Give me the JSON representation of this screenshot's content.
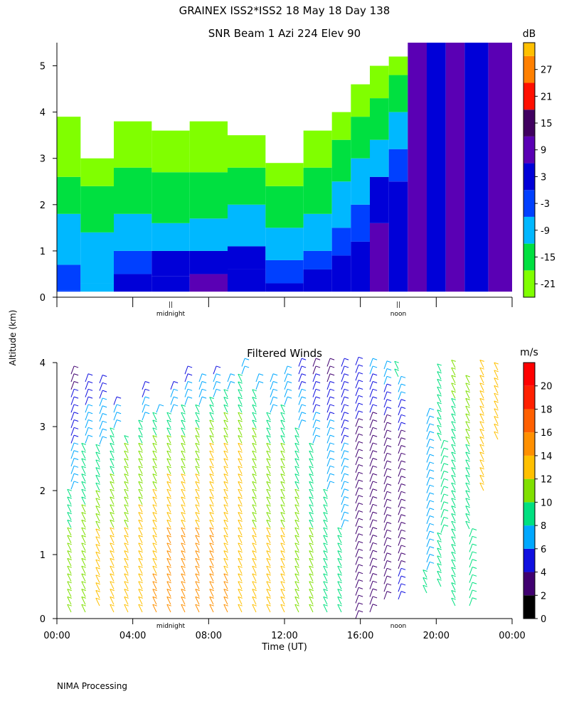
{
  "header": {
    "title": "GRAINEX ISS2*ISS2  18 May 18 Day 138",
    "ylabel": "Altitude (km)",
    "footer": "NIMA Processing"
  },
  "chart_data": [
    {
      "type": "heatmap",
      "title": "SNR Beam 1 Azi 224 Elev 90",
      "xlabel": "",
      "ylabel": "Altitude (km)",
      "ylim": [
        0,
        5.5
      ],
      "xlim": [
        0,
        24
      ],
      "yticks": [
        0,
        1,
        2,
        3,
        4,
        5
      ],
      "x_markers": [
        {
          "hour": 6,
          "label": "midnight"
        },
        {
          "hour": 18,
          "label": "noon"
        }
      ],
      "colorbar": {
        "unit": "dB",
        "ticks": [
          -21,
          -15,
          -9,
          -3,
          3,
          9,
          15,
          21,
          27
        ],
        "bins": [
          {
            "low": -24,
            "high": -18,
            "color": "#80ff00"
          },
          {
            "low": -18,
            "high": -12,
            "color": "#00e040"
          },
          {
            "low": -12,
            "high": -6,
            "color": "#00b8ff"
          },
          {
            "low": -6,
            "high": 0,
            "color": "#0040ff"
          },
          {
            "low": 0,
            "high": 6,
            "color": "#0000d8"
          },
          {
            "low": 6,
            "high": 12,
            "color": "#5a00b4"
          },
          {
            "low": 12,
            "high": 18,
            "color": "#400060"
          },
          {
            "low": 18,
            "high": 24,
            "color": "#ff1000"
          },
          {
            "low": 24,
            "high": 30,
            "color": "#ff8000"
          },
          {
            "low": 30,
            "high": 33,
            "color": "#ffc000"
          }
        ]
      },
      "profile_x_hours": [
        0.5,
        2,
        4,
        6,
        8,
        10,
        12,
        14,
        15,
        16,
        17,
        18,
        19,
        20,
        21,
        22,
        23.5
      ],
      "profile_bands": [
        [
          {
            "top": 0.15,
            "level": -6
          },
          {
            "top": 0.7,
            "level": -6
          },
          {
            "top": 1.8,
            "level": -12
          },
          {
            "top": 2.6,
            "level": -18
          },
          {
            "top": 3.9,
            "level": -21
          }
        ],
        [
          {
            "top": 0.3,
            "level": -12
          },
          {
            "top": 1.4,
            "level": -12
          },
          {
            "top": 2.4,
            "level": -18
          },
          {
            "top": 3.0,
            "level": -21
          }
        ],
        [
          {
            "top": 0.5,
            "level": 3
          },
          {
            "top": 1.0,
            "level": -6
          },
          {
            "top": 1.8,
            "level": -12
          },
          {
            "top": 2.8,
            "level": -18
          },
          {
            "top": 3.8,
            "level": -21
          }
        ],
        [
          {
            "top": 0.45,
            "level": 3
          },
          {
            "top": 1.0,
            "level": 0
          },
          {
            "top": 1.6,
            "level": -12
          },
          {
            "top": 2.7,
            "level": -18
          },
          {
            "top": 3.6,
            "level": -21
          }
        ],
        [
          {
            "top": 0.5,
            "level": 9
          },
          {
            "top": 1.0,
            "level": 0
          },
          {
            "top": 1.7,
            "level": -12
          },
          {
            "top": 2.7,
            "level": -18
          },
          {
            "top": 3.8,
            "level": -21
          }
        ],
        [
          {
            "top": 0.6,
            "level": 3
          },
          {
            "top": 1.1,
            "level": 0
          },
          {
            "top": 2.0,
            "level": -12
          },
          {
            "top": 2.8,
            "level": -18
          },
          {
            "top": 3.5,
            "level": -21
          }
        ],
        [
          {
            "top": 0.3,
            "level": 3
          },
          {
            "top": 0.8,
            "level": -6
          },
          {
            "top": 1.5,
            "level": -12
          },
          {
            "top": 2.4,
            "level": -18
          },
          {
            "top": 2.9,
            "level": -21
          }
        ],
        [
          {
            "top": 0.6,
            "level": 3
          },
          {
            "top": 1.0,
            "level": -6
          },
          {
            "top": 1.8,
            "level": -12
          },
          {
            "top": 2.8,
            "level": -18
          },
          {
            "top": 3.6,
            "level": -21
          }
        ],
        [
          {
            "top": 0.9,
            "level": 3
          },
          {
            "top": 1.5,
            "level": -6
          },
          {
            "top": 2.5,
            "level": -12
          },
          {
            "top": 3.4,
            "level": -18
          },
          {
            "top": 4.0,
            "level": -21
          }
        ],
        [
          {
            "top": 1.2,
            "level": 3
          },
          {
            "top": 2.0,
            "level": -6
          },
          {
            "top": 3.0,
            "level": -12
          },
          {
            "top": 3.9,
            "level": -18
          },
          {
            "top": 4.6,
            "level": -21
          }
        ],
        [
          {
            "top": 1.6,
            "level": 9
          },
          {
            "top": 2.6,
            "level": 0
          },
          {
            "top": 3.4,
            "level": -12
          },
          {
            "top": 4.3,
            "level": -18
          },
          {
            "top": 5.0,
            "level": -21
          }
        ],
        [
          {
            "top": 2.5,
            "level": 3
          },
          {
            "top": 3.2,
            "level": -6
          },
          {
            "top": 4.0,
            "level": -12
          },
          {
            "top": 4.8,
            "level": -18
          },
          {
            "top": 5.2,
            "level": -21
          }
        ],
        [
          {
            "top": 5.5,
            "level": 9
          }
        ],
        [
          {
            "top": 5.5,
            "level": 3
          }
        ],
        [
          {
            "top": 5.5,
            "level": 9
          }
        ],
        [
          {
            "top": 5.5,
            "level": 3
          }
        ],
        [
          {
            "top": 5.5,
            "level": 9
          }
        ]
      ]
    },
    {
      "type": "scatter",
      "title": "Filtered Winds",
      "xlabel": "Time (UT)",
      "ylabel": "Altitude (km)",
      "xlim": [
        0,
        24
      ],
      "ylim": [
        0,
        4
      ],
      "xticks": [
        "00:00",
        "04:00",
        "08:00",
        "12:00",
        "16:00",
        "20:00",
        "00:00"
      ],
      "yticks": [
        0,
        1,
        2,
        3,
        4
      ],
      "x_markers": [
        {
          "hour": 6,
          "label": "midnight"
        },
        {
          "hour": 18,
          "label": "noon"
        }
      ],
      "colorbar": {
        "unit": "m/s",
        "ticks": [
          0,
          2,
          4,
          6,
          8,
          10,
          12,
          14,
          16,
          18,
          20
        ],
        "bins": [
          {
            "low": 0,
            "high": 2,
            "color": "#000000"
          },
          {
            "low": 2,
            "high": 4,
            "color": "#400070"
          },
          {
            "low": 4,
            "high": 6,
            "color": "#1010e0"
          },
          {
            "low": 6,
            "high": 8,
            "color": "#00a8ff"
          },
          {
            "low": 8,
            "high": 10,
            "color": "#00e080"
          },
          {
            "low": 10,
            "high": 12,
            "color": "#80e000"
          },
          {
            "low": 12,
            "high": 14,
            "color": "#ffc000"
          },
          {
            "low": 14,
            "high": 16,
            "color": "#ff9000"
          },
          {
            "low": 16,
            "high": 18,
            "color": "#ff6000"
          },
          {
            "low": 18,
            "high": 20,
            "color": "#ff2000"
          },
          {
            "low": 20,
            "high": 22,
            "color": "#ff0000"
          }
        ]
      },
      "wind_columns": [
        {
          "hour": 0.75,
          "bottom": 0.1,
          "top": 3.9,
          "speed": [
            12,
            10,
            6,
            3
          ]
        },
        {
          "hour": 1.5,
          "bottom": 0.1,
          "top": 3.8,
          "speed": [
            12,
            11,
            8,
            4
          ]
        },
        {
          "hour": 2.25,
          "bottom": 0.2,
          "top": 3.7,
          "speed": [
            12,
            12,
            8,
            4
          ]
        },
        {
          "hour": 3.0,
          "bottom": 0.1,
          "top": 3.4,
          "speed": [
            13,
            12,
            9,
            3
          ]
        },
        {
          "hour": 3.75,
          "bottom": 0.1,
          "top": 2.8,
          "speed": [
            14,
            12,
            10,
            4
          ]
        },
        {
          "hour": 4.5,
          "bottom": 0.1,
          "top": 3.6,
          "speed": [
            14,
            13,
            10,
            3
          ]
        },
        {
          "hour": 5.25,
          "bottom": 0.1,
          "top": 3.3,
          "speed": [
            15,
            13,
            11,
            3
          ]
        },
        {
          "hour": 6.0,
          "bottom": 0.1,
          "top": 3.6,
          "speed": [
            16,
            14,
            11,
            3
          ]
        },
        {
          "hour": 6.75,
          "bottom": 0.1,
          "top": 3.9,
          "speed": [
            16,
            14,
            11,
            4
          ]
        },
        {
          "hour": 7.5,
          "bottom": 0.1,
          "top": 3.8,
          "speed": [
            16,
            14,
            11,
            5
          ]
        },
        {
          "hour": 8.25,
          "bottom": 0.1,
          "top": 3.9,
          "speed": [
            15,
            14,
            12,
            5
          ]
        },
        {
          "hour": 9.0,
          "bottom": 0.1,
          "top": 3.7,
          "speed": [
            15,
            13,
            12,
            6
          ]
        },
        {
          "hour": 9.75,
          "bottom": 0.1,
          "top": 4.0,
          "speed": [
            14,
            13,
            12,
            7
          ]
        },
        {
          "hour": 10.5,
          "bottom": 0.1,
          "top": 3.8,
          "speed": [
            14,
            12,
            11,
            6
          ]
        },
        {
          "hour": 11.25,
          "bottom": 0.1,
          "top": 3.7,
          "speed": [
            13,
            12,
            10,
            5
          ]
        },
        {
          "hour": 12.0,
          "bottom": 0.1,
          "top": 3.9,
          "speed": [
            13,
            12,
            10,
            6
          ]
        },
        {
          "hour": 12.75,
          "bottom": 0.1,
          "top": 4.0,
          "speed": [
            12,
            11,
            9,
            4
          ]
        },
        {
          "hour": 13.5,
          "bottom": 0.1,
          "top": 4.0,
          "speed": [
            11,
            10,
            8,
            3
          ]
        },
        {
          "hour": 14.25,
          "bottom": 0.1,
          "top": 4.0,
          "speed": [
            10,
            9,
            7,
            3
          ]
        },
        {
          "hour": 15.0,
          "bottom": 0.1,
          "top": 4.0,
          "speed": [
            9,
            8,
            6,
            5
          ]
        },
        {
          "hour": 15.75,
          "bottom": 0.0,
          "top": 4.0,
          "speed": [
            3,
            4,
            3,
            6
          ]
        },
        {
          "hour": 16.5,
          "bottom": 0.1,
          "top": 4.0,
          "speed": [
            2,
            3,
            2,
            7
          ]
        },
        {
          "hour": 17.25,
          "bottom": 0.3,
          "top": 4.0,
          "speed": [
            4,
            3,
            2,
            8
          ]
        },
        {
          "hour": 18.0,
          "bottom": 0.3,
          "top": 4.0,
          "speed": [
            5,
            3,
            3,
            9
          ]
        },
        {
          "hour": 19.5,
          "bottom": 0.4,
          "top": 3.2,
          "speed": [
            9,
            7,
            7,
            9
          ]
        },
        {
          "hour": 20.25,
          "bottom": 0.5,
          "top": 3.9,
          "speed": [
            9,
            8,
            8,
            10
          ]
        },
        {
          "hour": 21.0,
          "bottom": 0.2,
          "top": 4.0,
          "speed": [
            8,
            9,
            9,
            11
          ]
        },
        {
          "hour": 21.75,
          "bottom": 0.2,
          "top": 3.7,
          "speed": [
            8,
            8,
            10,
            12
          ]
        },
        {
          "hour": 22.5,
          "bottom": 2.0,
          "top": 4.0,
          "speed": [
            12,
            13,
            14,
            12
          ]
        },
        {
          "hour": 23.25,
          "bottom": 2.8,
          "top": 3.9,
          "speed": [
            7,
            12,
            14,
            13
          ]
        }
      ]
    }
  ]
}
